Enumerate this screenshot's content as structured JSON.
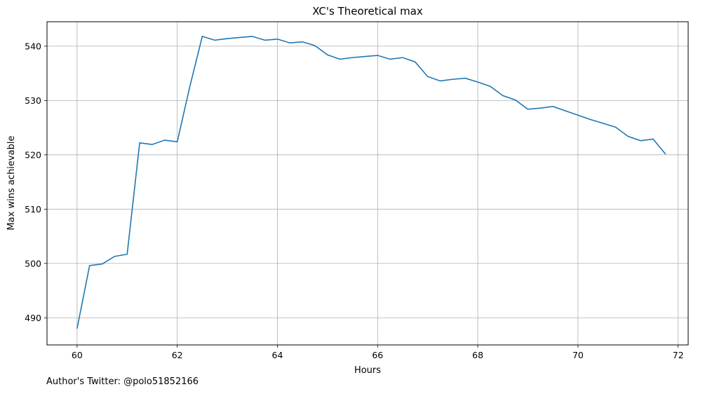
{
  "chart_data": {
    "type": "line",
    "title": "XC's Theoretical max",
    "xlabel": "Hours",
    "ylabel": "Max wins achievable",
    "xlim": [
      59.4,
      72.2
    ],
    "ylim": [
      485,
      544.5
    ],
    "xticks": [
      60,
      62,
      64,
      66,
      68,
      70,
      72
    ],
    "yticks": [
      490,
      500,
      510,
      520,
      530,
      540
    ],
    "grid": true,
    "line_color": "#1f77b4",
    "series": [
      {
        "x": [
          60,
          60.25,
          60.5,
          60.75,
          61,
          61.25,
          61.5,
          61.75,
          62,
          62.25,
          62.5,
          62.75,
          63,
          63.25,
          63.5,
          63.75,
          64,
          64.25,
          64.5,
          64.75,
          65,
          65.25,
          65.5,
          65.75,
          66,
          66.25,
          66.5,
          66.75,
          67,
          67.25,
          67.5,
          67.75,
          68,
          68.25,
          68.5,
          68.75,
          69,
          69.25,
          69.5,
          69.75,
          70,
          70.25,
          70.5,
          70.75,
          71,
          71.25,
          71.5,
          71.75
        ],
        "values": [
          488,
          499.6,
          499.9,
          501.3,
          501.7,
          522.2,
          521.9,
          522.7,
          522.4,
          532.5,
          541.8,
          541.1,
          541.4,
          541.6,
          541.8,
          541.1,
          541.3,
          540.6,
          540.8,
          540.1,
          538.4,
          537.6,
          537.9,
          538.1,
          538.3,
          537.6,
          537.9,
          537.1,
          534.4,
          533.6,
          533.9,
          534.1,
          533.4,
          532.6,
          530.9,
          530.1,
          528.4,
          528.6,
          528.9,
          528.1,
          527.3,
          526.5,
          525.8,
          525.1,
          523.4,
          522.6,
          522.9,
          520.1
        ]
      }
    ]
  },
  "footnote": "Author's Twitter: @polo51852166"
}
